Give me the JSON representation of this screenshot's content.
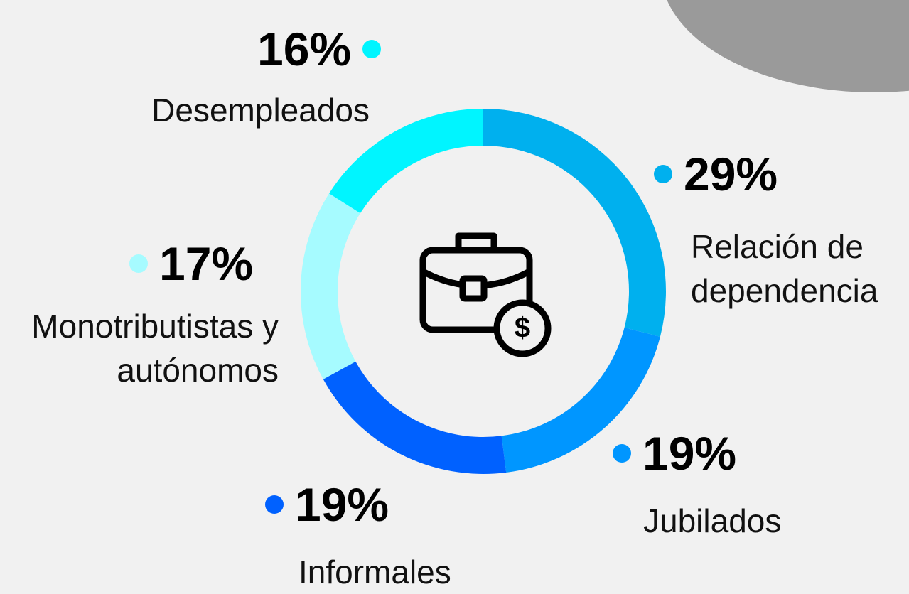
{
  "chart_data": {
    "type": "donut",
    "categories": [
      "Relación de dependencia",
      "Jubilados",
      "Informales",
      "Monotributistas y autónomos",
      "Desempleados"
    ],
    "values": [
      29,
      19,
      19,
      17,
      16
    ],
    "value_labels": [
      "29%",
      "19%",
      "19%",
      "17%",
      "16%"
    ],
    "colors": [
      "#00b0ee",
      "#0096ff",
      "#0061ff",
      "#a6fbff",
      "#00f5ff"
    ]
  }
}
